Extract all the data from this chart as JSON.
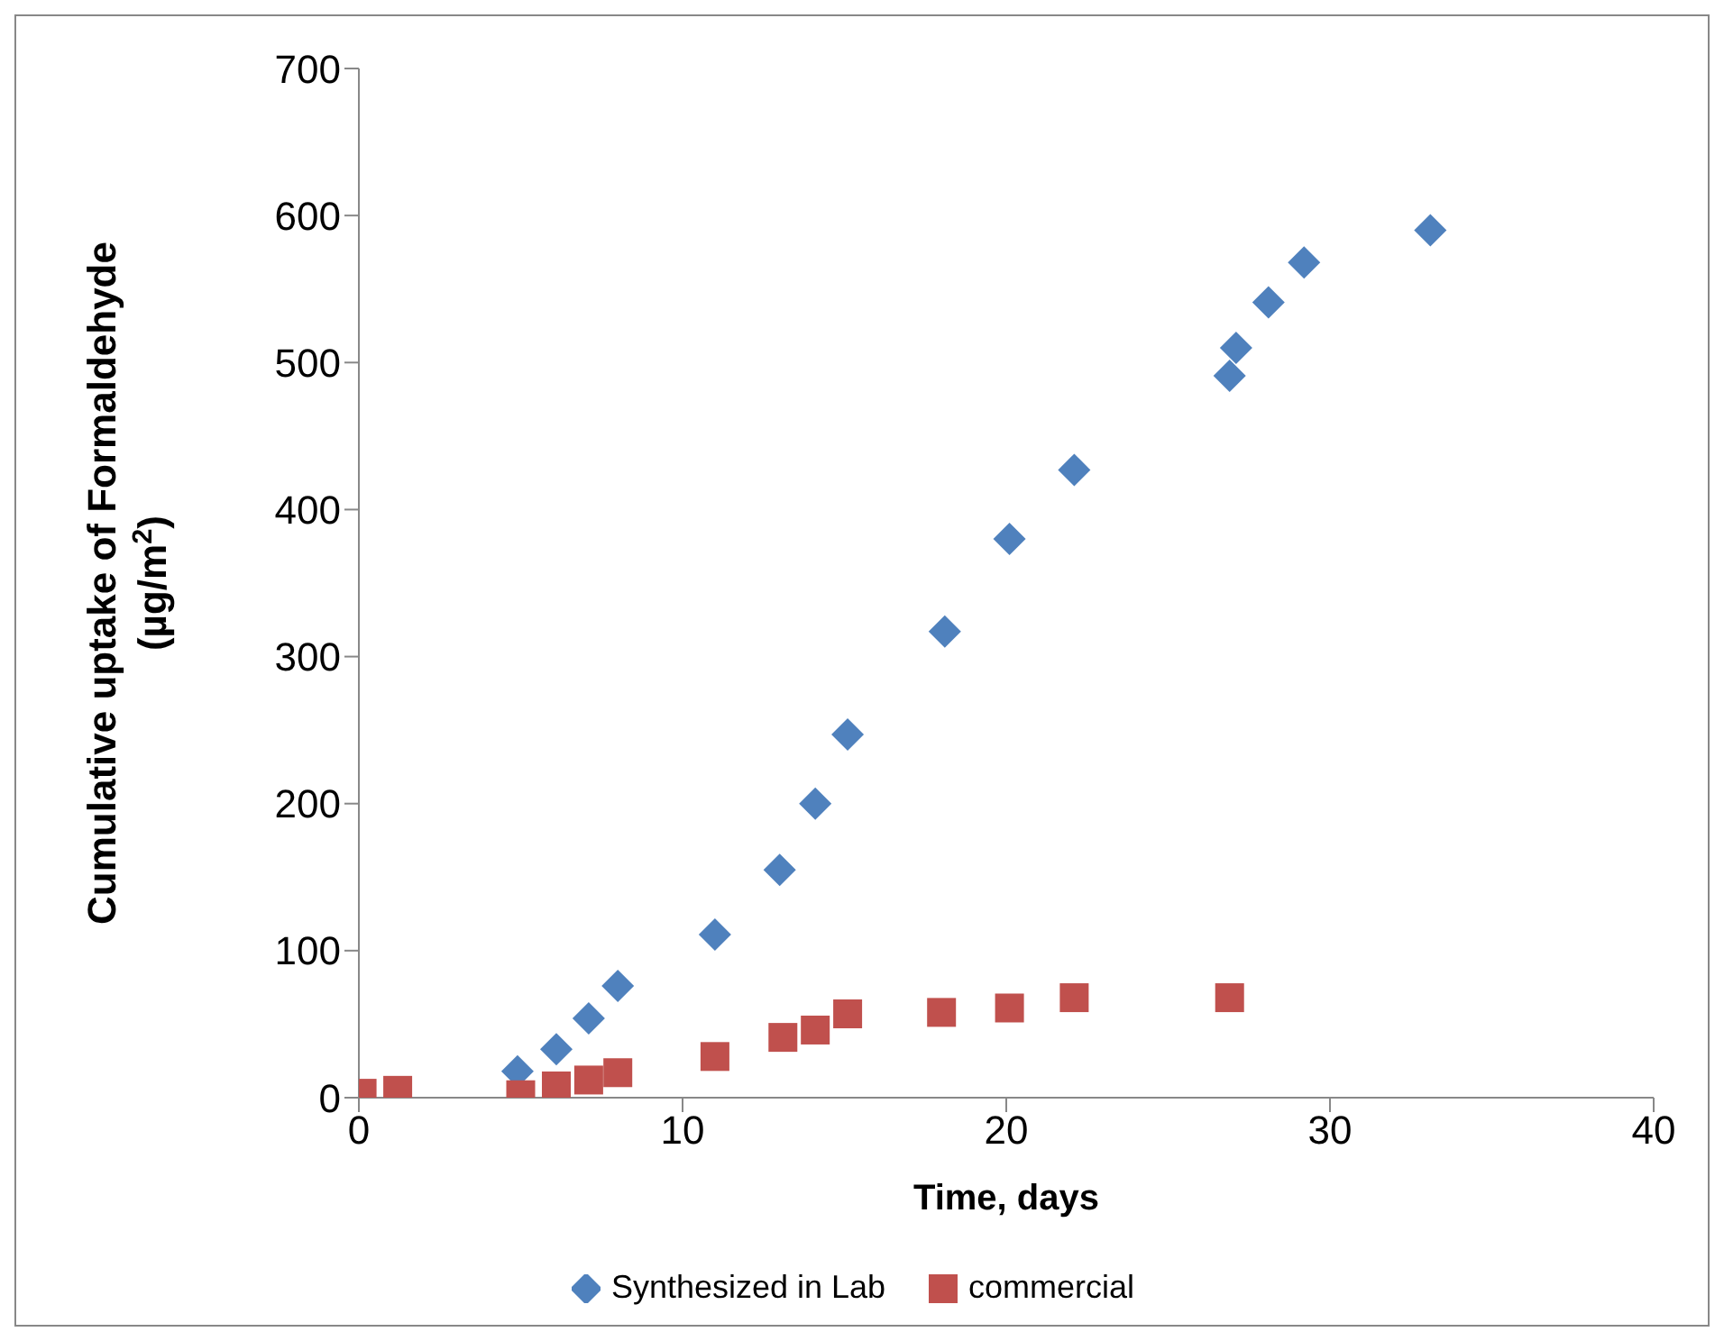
{
  "chart_data": {
    "type": "scatter",
    "xlabel": "Time, days",
    "ylabel": "Cumulative uptake of Formaldehyde\n(µg/m$^{2}$)",
    "xlim": [
      0,
      40
    ],
    "xticks": [
      0,
      10,
      20,
      30,
      40
    ],
    "ylim": [
      0,
      700
    ],
    "yticks": [
      0,
      100,
      200,
      300,
      400,
      500,
      600,
      700
    ],
    "grid": false,
    "legend": "bottom",
    "series": [
      {
        "name": "Synthesized in Lab",
        "color": "#4f81bd",
        "marker": "diamond",
        "x": [
          4.9,
          6.1,
          7.1,
          8,
          11,
          13,
          14.1,
          15.1,
          18.1,
          20.1,
          22.1,
          26.9,
          27.1,
          28.1,
          29.2,
          33.1
        ],
        "values": [
          18,
          33,
          54,
          76,
          111,
          155,
          200,
          247,
          317,
          380,
          427,
          491,
          510,
          541,
          568,
          590
        ]
      },
      {
        "name": "commercial",
        "color": "#c0504d",
        "marker": "square",
        "x": [
          0.1,
          1.2,
          5,
          6.1,
          7.1,
          8,
          11,
          13.1,
          14.1,
          15.1,
          18,
          20.1,
          22.1,
          26.9
        ],
        "values": [
          3,
          5,
          2,
          8,
          12,
          17,
          28,
          41,
          46,
          57,
          58,
          61,
          68,
          68
        ]
      }
    ]
  }
}
